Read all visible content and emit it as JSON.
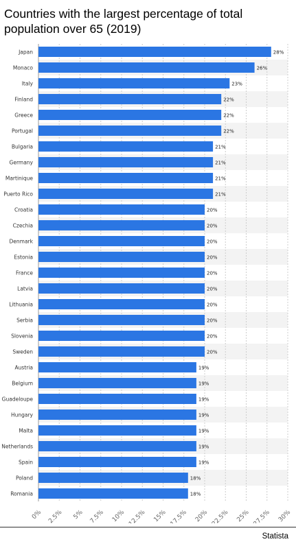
{
  "title": "Countries with the largest percentage of total population over 65 (2019)",
  "source": "Statista",
  "colors": {
    "bar": "#2b76e3",
    "stripe": "#f3f3f3",
    "grid": "#cccccc"
  },
  "chart_data": {
    "type": "bar",
    "orientation": "horizontal",
    "categories": [
      "Japan",
      "Monaco",
      "Italy",
      "Finland",
      "Greece",
      "Portugal",
      "Bulgaria",
      "Germany",
      "Martinique",
      "Puerto Rico",
      "Croatia",
      "Czechia",
      "Denmark",
      "Estonia",
      "France",
      "Latvia",
      "Lithuania",
      "Serbia",
      "Slovenia",
      "Sweden",
      "Austria",
      "Belgium",
      "Guadeloupe",
      "Hungary",
      "Malta",
      "Netherlands",
      "Spain",
      "Poland",
      "Romania"
    ],
    "values": [
      28,
      26,
      23,
      22,
      22,
      22,
      21,
      21,
      21,
      21,
      20,
      20,
      20,
      20,
      20,
      20,
      20,
      20,
      20,
      20,
      19,
      19,
      19,
      19,
      19,
      19,
      19,
      18,
      18
    ],
    "value_labels": [
      "28%",
      "26%",
      "23%",
      "22%",
      "22%",
      "22%",
      "21%",
      "21%",
      "21%",
      "21%",
      "20%",
      "20%",
      "20%",
      "20%",
      "20%",
      "20%",
      "20%",
      "20%",
      "20%",
      "20%",
      "19%",
      "19%",
      "19%",
      "19%",
      "19%",
      "19%",
      "19%",
      "18%",
      "18%"
    ],
    "xlim": [
      0,
      30
    ],
    "ticks": [
      0,
      2.5,
      5,
      7.5,
      10,
      12.5,
      15,
      17.5,
      20,
      22.5,
      25,
      27.5,
      30
    ],
    "tick_labels": [
      "0%",
      "2.5%",
      "5%",
      "7.5%",
      "10%",
      "12.5%",
      "15%",
      "17.5%",
      "20%",
      "22.5%",
      "25%",
      "27.5%",
      "30%"
    ],
    "grid": true
  }
}
